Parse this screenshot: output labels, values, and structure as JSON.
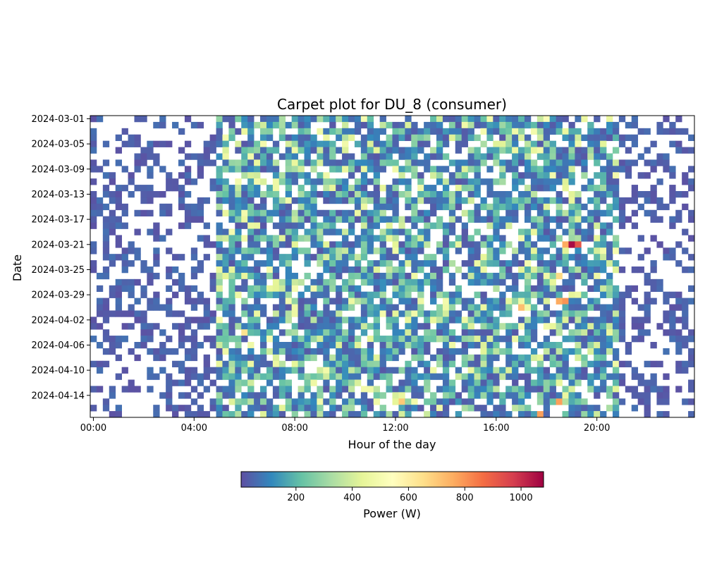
{
  "chart_data": {
    "type": "heatmap",
    "title": "Carpet plot for DU_8 (consumer)",
    "xlabel": "Hour of the day",
    "ylabel": "Date",
    "x_ticks": [
      "00:00",
      "04:00",
      "08:00",
      "12:00",
      "16:00",
      "20:00"
    ],
    "y_ticks": [
      "2024-03-01",
      "2024-03-05",
      "2024-03-09",
      "2024-03-13",
      "2024-03-17",
      "2024-03-21",
      "2024-03-25",
      "2024-03-29",
      "2024-04-02",
      "2024-04-06",
      "2024-04-10",
      "2024-04-14"
    ],
    "x_range": [
      "00:00",
      "23:45"
    ],
    "x_step": "15 min",
    "y_range": [
      "2024-03-01",
      "2024-04-17"
    ],
    "colormap": "Spectral_r",
    "colorbar": {
      "label": "Power (W)",
      "range": [
        5,
        1080
      ],
      "ticks": [
        "200",
        "400",
        "600",
        "800",
        "1000"
      ],
      "stops": [
        "#5e4fa2",
        "#3288bd",
        "#66c2a5",
        "#abdda4",
        "#e6f598",
        "#ffffbf",
        "#fee08b",
        "#fdae61",
        "#f46d43",
        "#d53e4f",
        "#9e0142"
      ],
      "orientation": "horizontal"
    },
    "pattern": {
      "baseline": "mostly low consumption (under 150 W) with missing/blank intervals scattered across the night hours",
      "active_hours": "about 05:00 to 21:00 with values between 150 and 450 W",
      "peaks": [
        {
          "date": "2024-03-21",
          "time": "19:00",
          "value": 1060
        },
        {
          "date": "2024-03-21",
          "time": "19:15",
          "value": 920
        },
        {
          "date": "2024-03-21",
          "time": "18:45",
          "value": 760
        },
        {
          "date": "2024-03-30",
          "time": "18:30",
          "value": 760
        },
        {
          "date": "2024-03-30",
          "time": "18:45",
          "value": 800
        },
        {
          "date": "2024-03-31",
          "time": "17:00",
          "value": 720
        },
        {
          "date": "2024-04-04",
          "time": "06:00",
          "value": 640
        },
        {
          "date": "2024-04-15",
          "time": "12:15",
          "value": 700
        },
        {
          "date": "2024-04-15",
          "time": "18:30",
          "value": 780
        },
        {
          "date": "2024-04-17",
          "time": "17:45",
          "value": 780
        },
        {
          "date": "2024-03-26",
          "time": "18:30",
          "value": 660
        },
        {
          "date": "2024-03-01",
          "time": "18:00",
          "value": 520
        }
      ]
    }
  }
}
